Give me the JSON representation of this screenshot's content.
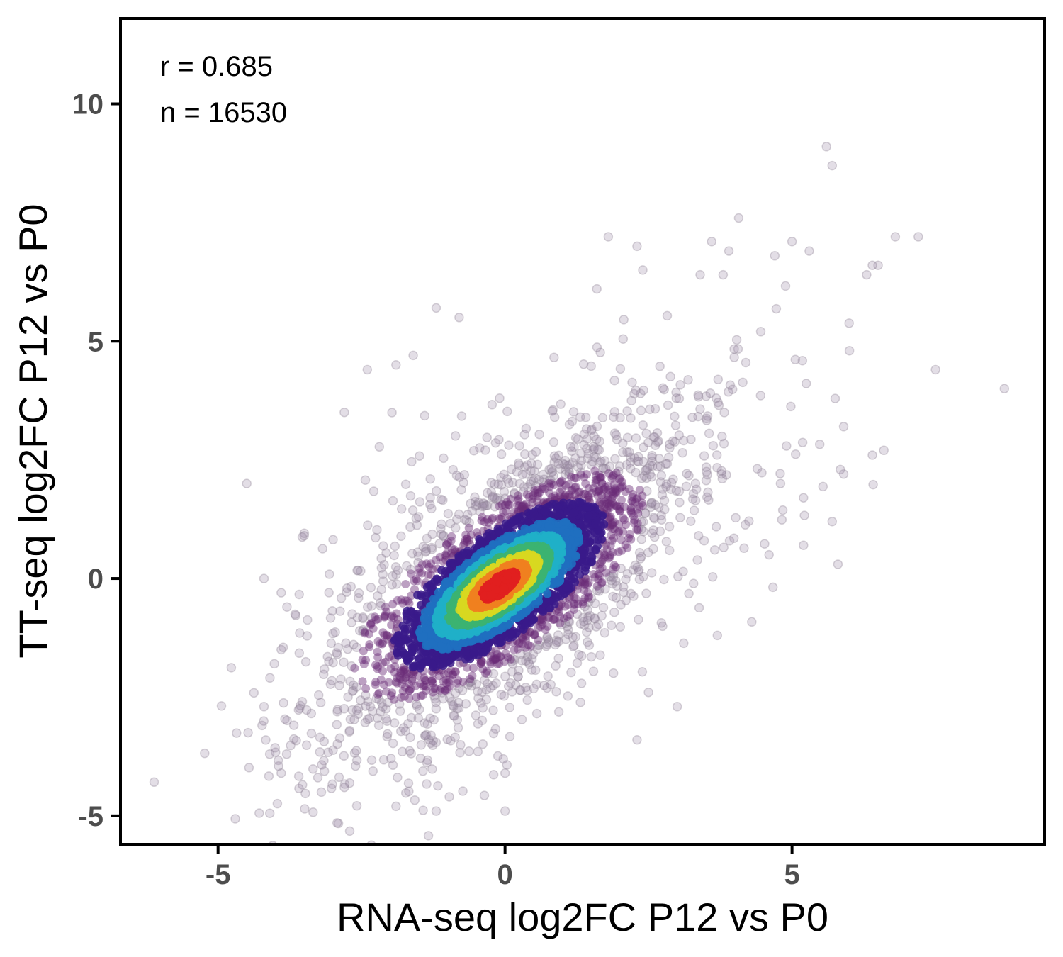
{
  "chart_data": {
    "type": "scatter",
    "title": "",
    "xlabel": "RNA-seq log2FC P12 vs P0",
    "ylabel": "TT-seq log2FC P12 vs P0",
    "xlim": [
      -6.7,
      9.4
    ],
    "ylim": [
      -5.6,
      11.8
    ],
    "x_ticks": [
      -5,
      0,
      5
    ],
    "y_ticks": [
      -5,
      0,
      5,
      10
    ],
    "x_tick_labels": [
      "-5",
      "0",
      "5"
    ],
    "y_tick_labels": [
      "-5",
      "0",
      "5",
      "10"
    ],
    "grid": false,
    "legend": "none",
    "color_encoding": "point density (low: grey-purple, high: red)",
    "density_colors": [
      "#9a88a4",
      "#6a2c77",
      "#3a1a8a",
      "#1f6fc0",
      "#1fb0c8",
      "#3cb371",
      "#d8d820",
      "#f08020",
      "#e02020"
    ],
    "annotations": [
      {
        "text": "r = 0.685"
      },
      {
        "text": "n = 16530"
      }
    ],
    "correlation_r": 0.685,
    "n_points": 16530,
    "outlier_points": [
      {
        "x": 5.6,
        "y": 9.1
      },
      {
        "x": 5.7,
        "y": 8.7
      },
      {
        "x": 1.8,
        "y": 7.2
      },
      {
        "x": 2.3,
        "y": 7.0
      },
      {
        "x": 3.6,
        "y": 7.1
      },
      {
        "x": 3.9,
        "y": 6.9
      },
      {
        "x": 4.7,
        "y": 6.8
      },
      {
        "x": 5.0,
        "y": 7.1
      },
      {
        "x": 5.3,
        "y": 6.9
      },
      {
        "x": 6.8,
        "y": 7.2
      },
      {
        "x": 7.2,
        "y": 7.2
      },
      {
        "x": 6.5,
        "y": 6.6
      },
      {
        "x": 6.3,
        "y": 6.4
      },
      {
        "x": 6.4,
        "y": 6.6
      },
      {
        "x": 2.4,
        "y": 6.5
      },
      {
        "x": 3.4,
        "y": 6.4
      },
      {
        "x": 3.8,
        "y": 6.4
      },
      {
        "x": -1.2,
        "y": 5.7
      },
      {
        "x": -0.8,
        "y": 5.5
      },
      {
        "x": 1.6,
        "y": 6.1
      },
      {
        "x": -1.6,
        "y": 4.7
      },
      {
        "x": -2.4,
        "y": 4.4
      },
      {
        "x": -1.9,
        "y": 4.5
      },
      {
        "x": 7.5,
        "y": 4.4
      },
      {
        "x": 8.7,
        "y": 4.0
      },
      {
        "x": 6.0,
        "y": 4.8
      },
      {
        "x": -2.8,
        "y": 3.5
      },
      {
        "x": -4.5,
        "y": 2.0
      },
      {
        "x": -3.5,
        "y": 0.9
      },
      {
        "x": -4.2,
        "y": 0.0
      },
      {
        "x": -3.9,
        "y": -0.3
      },
      {
        "x": -3.8,
        "y": -0.6
      },
      {
        "x": -3.9,
        "y": -1.5
      },
      {
        "x": -4.2,
        "y": -2.7
      },
      {
        "x": -4.1,
        "y": -3.7
      },
      {
        "x": -3.9,
        "y": -4.1
      },
      {
        "x": -3.2,
        "y": -4.5
      },
      {
        "x": -2.8,
        "y": -4.4
      },
      {
        "x": -1.9,
        "y": -4.8
      },
      {
        "x": -1.2,
        "y": -4.9
      },
      {
        "x": 0.0,
        "y": -4.9
      },
      {
        "x": 0.0,
        "y": -4.1
      },
      {
        "x": 2.3,
        "y": -3.4
      },
      {
        "x": 3.0,
        "y": -2.7
      },
      {
        "x": 2.5,
        "y": -2.4
      },
      {
        "x": 3.7,
        "y": -1.2
      },
      {
        "x": 5.8,
        "y": 0.3
      },
      {
        "x": 5.2,
        "y": 0.7
      },
      {
        "x": 4.6,
        "y": 0.5
      },
      {
        "x": 5.7,
        "y": 1.2
      },
      {
        "x": 5.9,
        "y": 2.2
      },
      {
        "x": 6.6,
        "y": 2.7
      },
      {
        "x": 6.4,
        "y": 2.6
      },
      {
        "x": 5.9,
        "y": 3.2
      },
      {
        "x": 5.2,
        "y": 1.7
      },
      {
        "x": 4.8,
        "y": 2.0
      }
    ]
  }
}
